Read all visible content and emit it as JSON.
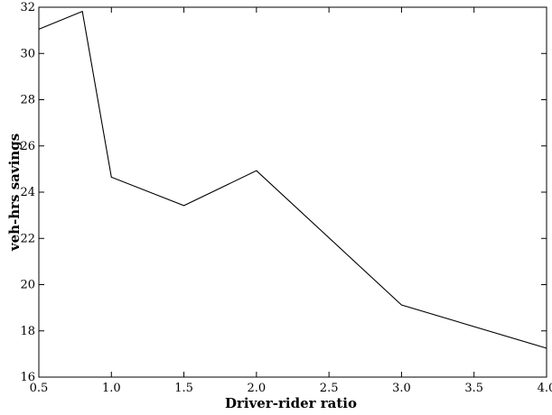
{
  "chart_data": {
    "type": "line",
    "title": "",
    "xlabel": "Driver-rider ratio",
    "ylabel": "veh-hrs savings",
    "xlim": [
      0.5,
      4.0
    ],
    "ylim": [
      16,
      32
    ],
    "x_ticks": [
      0.5,
      1.0,
      1.5,
      2.0,
      2.5,
      3.0,
      3.5,
      4.0
    ],
    "x_tick_labels": [
      "0.5",
      "1.0",
      "1.5",
      "2.0",
      "2.5",
      "3.0",
      "3.5",
      "4.0"
    ],
    "y_ticks": [
      16,
      18,
      20,
      22,
      24,
      26,
      28,
      30,
      32
    ],
    "y_tick_labels": [
      "16",
      "18",
      "20",
      "22",
      "24",
      "26",
      "28",
      "30",
      "32"
    ],
    "grid": false,
    "series": [
      {
        "x": [
          0.5,
          0.8,
          1.0,
          1.5,
          2.0,
          3.0,
          4.0
        ],
        "y": [
          31.05,
          31.82,
          24.65,
          23.42,
          24.93,
          19.12,
          17.25
        ],
        "color": "#000000"
      }
    ]
  }
}
